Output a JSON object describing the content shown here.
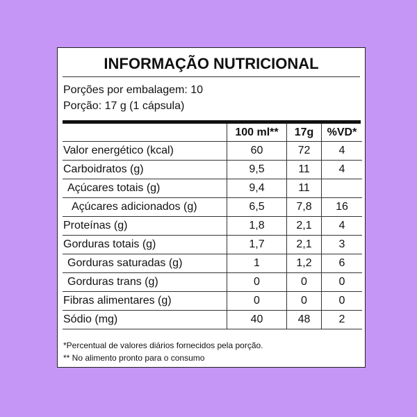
{
  "header": {
    "title": "INFORMAÇÃO NUTRICIONAL"
  },
  "portions": [
    "Porções por embalagem: 10",
    "Porção: 17 g (1 cápsula)"
  ],
  "table": {
    "columns": [
      "100 ml**",
      "17g",
      "%VD*"
    ],
    "rows": [
      [
        "Valor energético (kcal)",
        "60",
        "72",
        "4"
      ],
      [
        "Carboidratos (g)",
        "9,5",
        "11",
        "4"
      ],
      [
        "Açúcares totais (g)",
        "9,4",
        "11"
      ],
      [
        "Açúcares adicionados (g)",
        "6,5",
        "7,8",
        "16"
      ],
      [
        "Proteínas (g)",
        "1,8",
        "2,1",
        "4"
      ],
      [
        "Gorduras totais (g)",
        "1,7",
        "2,1",
        "3"
      ],
      [
        "Gorduras saturadas (g)",
        "1",
        "1,2",
        "6"
      ],
      [
        "Gorduras trans (g)",
        "0",
        "0",
        "0"
      ],
      [
        "Fibras alimentares (g)",
        "0",
        "0",
        "0"
      ],
      [
        "Sódio (mg)",
        "40",
        "48",
        "2"
      ]
    ]
  },
  "footnotes": [
    "*Percentual de valores diários fornecidos pela porção.",
    "** No alimento pronto para o consumo"
  ]
}
